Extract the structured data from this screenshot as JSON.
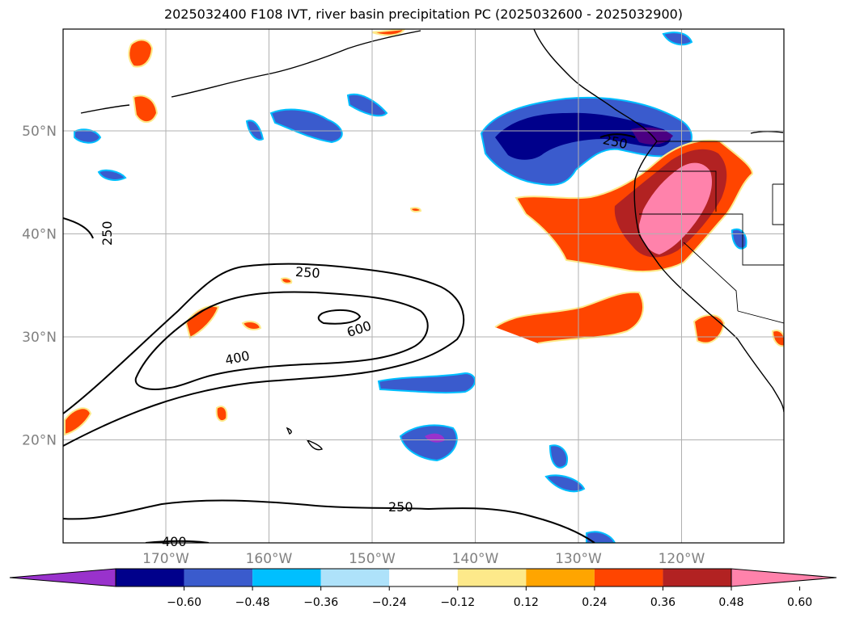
{
  "title": "2025032400 F108 IVT, river basin precipitation PC (2025032600 - 2025032900)",
  "map": {
    "lat_ticks": [
      {
        "value": 50,
        "label": "50°N"
      },
      {
        "value": 40,
        "label": "40°N"
      },
      {
        "value": 30,
        "label": "30°N"
      },
      {
        "value": 20,
        "label": "20°N"
      }
    ],
    "lon_ticks": [
      {
        "value": -170,
        "label": "170°W"
      },
      {
        "value": -160,
        "label": "160°W"
      },
      {
        "value": -150,
        "label": "150°W"
      },
      {
        "value": -140,
        "label": "140°W"
      },
      {
        "value": -130,
        "label": "130°W"
      },
      {
        "value": -120,
        "label": "120°W"
      }
    ],
    "ivt_contour_labels": [
      "250",
      "250",
      "250",
      "600",
      "400",
      "250",
      "400"
    ],
    "grid": true,
    "frame_color": "#000000",
    "grid_color": "#b0b0b0",
    "tick_label_color": "#808080"
  },
  "colorbar": {
    "tick_labels": [
      "−0.60",
      "−0.48",
      "−0.36",
      "−0.24",
      "−0.12",
      "0.12",
      "0.24",
      "0.36",
      "0.48",
      "0.60"
    ],
    "colors": [
      "#9932cc",
      "#00008b",
      "#3a5bcd",
      "#00bfff",
      "#aee2fa",
      "#ffffff",
      "#fde98a",
      "#ffa500",
      "#ff4500",
      "#b22222",
      "#ff82ab"
    ]
  }
}
